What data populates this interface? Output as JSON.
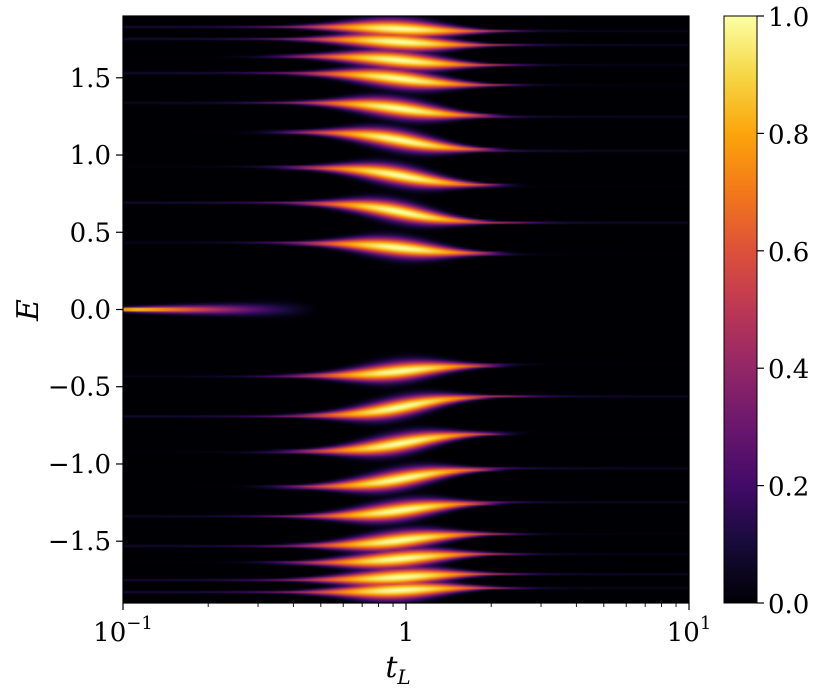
{
  "chart_data": {
    "type": "heatmap",
    "title": "",
    "xlabel": "t_L",
    "ylabel": "E",
    "x_scale": "log",
    "xlim": [
      0.1,
      10
    ],
    "ylim": [
      -1.9,
      1.9
    ],
    "x_ticks": [
      {
        "value": 0.1,
        "base": "10",
        "exp": "−1"
      },
      {
        "value": 1,
        "base": "1",
        "exp": ""
      },
      {
        "value": 10,
        "base": "10",
        "exp": "1"
      }
    ],
    "y_ticks": [
      {
        "value": 1.5,
        "label": "1.5"
      },
      {
        "value": 1.0,
        "label": "1.0"
      },
      {
        "value": 0.5,
        "label": "0.5"
      },
      {
        "value": 0.0,
        "label": "0.0"
      },
      {
        "value": -0.5,
        "label": "−0.5"
      },
      {
        "value": -1.0,
        "label": "−1.0"
      },
      {
        "value": -1.5,
        "label": "−1.5"
      }
    ],
    "colormap": "inferno",
    "colorbar": {
      "range": [
        0.0,
        1.0
      ],
      "ticks": [
        {
          "value": 1.0,
          "label": "1.0"
        },
        {
          "value": 0.8,
          "label": "0.8"
        },
        {
          "value": 0.6,
          "label": "0.6"
        },
        {
          "value": 0.4,
          "label": "0.4"
        },
        {
          "value": 0.2,
          "label": "0.2"
        },
        {
          "value": 0.0,
          "label": "0.0"
        }
      ]
    },
    "bands": [
      {
        "e_small": 0.43,
        "e_large": 0.36
      },
      {
        "e_small": 0.69,
        "e_large": 0.56
      },
      {
        "e_small": 0.92,
        "e_large": 0.8
      },
      {
        "e_small": 1.15,
        "e_large": 1.03
      },
      {
        "e_small": 1.34,
        "e_large": 1.25
      },
      {
        "e_small": 1.53,
        "e_large": 1.45
      },
      {
        "e_small": 1.64,
        "e_large": 1.58
      },
      {
        "e_small": 1.75,
        "e_large": 1.71
      },
      {
        "e_small": 1.83,
        "e_large": 1.8
      }
    ],
    "zero_mode": {
      "energy": 0.0,
      "t_max": 0.5
    }
  }
}
